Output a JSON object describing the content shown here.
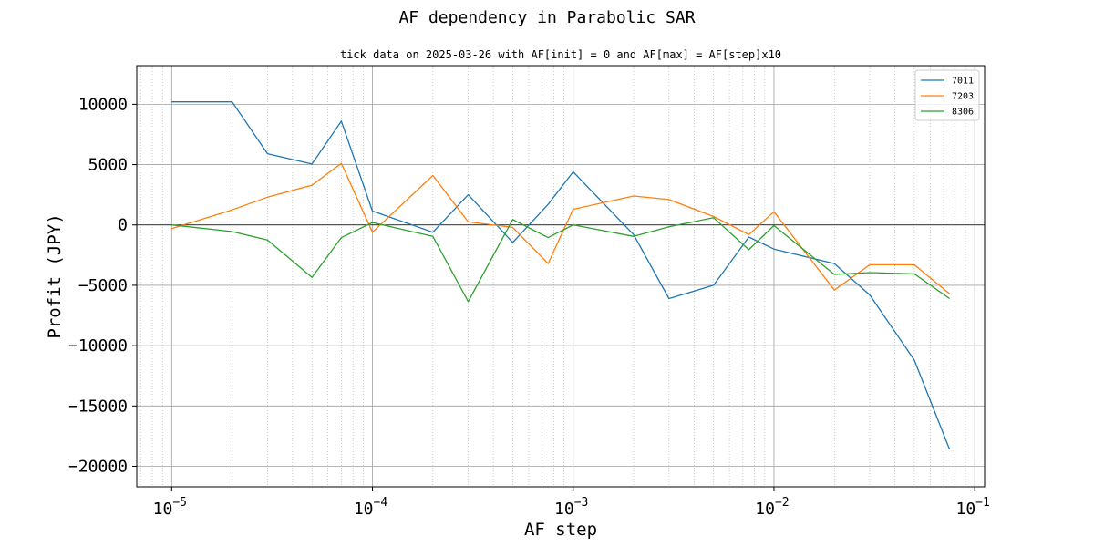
{
  "chart_data": {
    "type": "line",
    "title": "AF dependency in Parabolic SAR",
    "subtitle": "tick data on 2025-03-26 with AF[init] = 0 and AF[max] = AF[step]x10",
    "xlabel": "AF step",
    "ylabel": "Profit (JPY)",
    "xscale": "log",
    "xlim": [
      6.7e-06,
      0.112
    ],
    "ylim": [
      -21700,
      13200
    ],
    "grid": true,
    "legend_position": "top-right",
    "x_ticks": [
      {
        "value": 1e-05,
        "base": "10",
        "exp": "−5"
      },
      {
        "value": 0.0001,
        "base": "10",
        "exp": "−4"
      },
      {
        "value": 0.001,
        "base": "10",
        "exp": "−3"
      },
      {
        "value": 0.01,
        "base": "10",
        "exp": "−2"
      },
      {
        "value": 0.1,
        "base": "10",
        "exp": "−1"
      }
    ],
    "y_ticks": [
      {
        "value": 10000,
        "label": "10000"
      },
      {
        "value": 5000,
        "label": "5000"
      },
      {
        "value": 0,
        "label": "0"
      },
      {
        "value": -5000,
        "label": "−5000"
      },
      {
        "value": -10000,
        "label": "−10000"
      },
      {
        "value": -15000,
        "label": "−15000"
      },
      {
        "value": -20000,
        "label": "−20000"
      }
    ],
    "x": [
      1e-05,
      2e-05,
      3e-05,
      5e-05,
      7e-05,
      0.0001,
      0.0002,
      0.0003,
      0.0005,
      0.00075,
      0.001,
      0.002,
      0.003,
      0.005,
      0.0075,
      0.01,
      0.02,
      0.03,
      0.05,
      0.075
    ],
    "series": [
      {
        "name": "7011",
        "color": "#1f77b4",
        "values": [
          10200,
          10200,
          5900,
          5050,
          8600,
          1150,
          -600,
          2500,
          -1450,
          1700,
          4400,
          -800,
          -6100,
          -5000,
          -1000,
          -2000,
          -3200,
          -5800,
          -11200,
          -18600
        ]
      },
      {
        "name": "7203",
        "color": "#ff7f0e",
        "values": [
          -300,
          1250,
          2300,
          3300,
          5100,
          -600,
          4100,
          250,
          -200,
          -3200,
          1300,
          2400,
          2100,
          700,
          -800,
          1100,
          -5400,
          -3300,
          -3300,
          -5700
        ]
      },
      {
        "name": "8306",
        "color": "#2ca02c",
        "values": [
          0,
          -550,
          -1250,
          -4350,
          -1050,
          200,
          -950,
          -6350,
          450,
          -1050,
          0,
          -950,
          -150,
          600,
          -2050,
          -50,
          -4100,
          -3950,
          -4050,
          -6100
        ]
      }
    ]
  }
}
